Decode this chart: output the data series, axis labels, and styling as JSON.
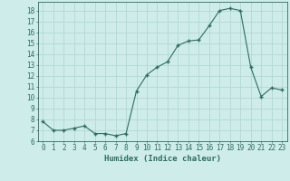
{
  "x": [
    0,
    1,
    2,
    3,
    4,
    5,
    6,
    7,
    8,
    9,
    10,
    11,
    12,
    13,
    14,
    15,
    16,
    17,
    18,
    19,
    20,
    21,
    22,
    23
  ],
  "y": [
    7.8,
    7.0,
    7.0,
    7.2,
    7.4,
    6.7,
    6.7,
    6.5,
    6.7,
    10.6,
    12.1,
    12.8,
    13.3,
    14.8,
    15.2,
    15.3,
    16.6,
    18.0,
    18.2,
    18.0,
    12.8,
    10.1,
    10.9,
    10.7
  ],
  "xlabel": "Humidex (Indice chaleur)",
  "xlim": [
    -0.5,
    23.5
  ],
  "ylim": [
    6.0,
    18.8
  ],
  "yticks": [
    6,
    7,
    8,
    9,
    10,
    11,
    12,
    13,
    14,
    15,
    16,
    17,
    18
  ],
  "xticks": [
    0,
    1,
    2,
    3,
    4,
    5,
    6,
    7,
    8,
    9,
    10,
    11,
    12,
    13,
    14,
    15,
    16,
    17,
    18,
    19,
    20,
    21,
    22,
    23
  ],
  "line_color": "#2d6e5e",
  "marker_color": "#2d6e5e",
  "bg_color": "#ceecea",
  "grid_color": "#aed4d0",
  "axis_color": "#2d6e5e",
  "label_fontsize": 6.5,
  "tick_fontsize": 5.5
}
